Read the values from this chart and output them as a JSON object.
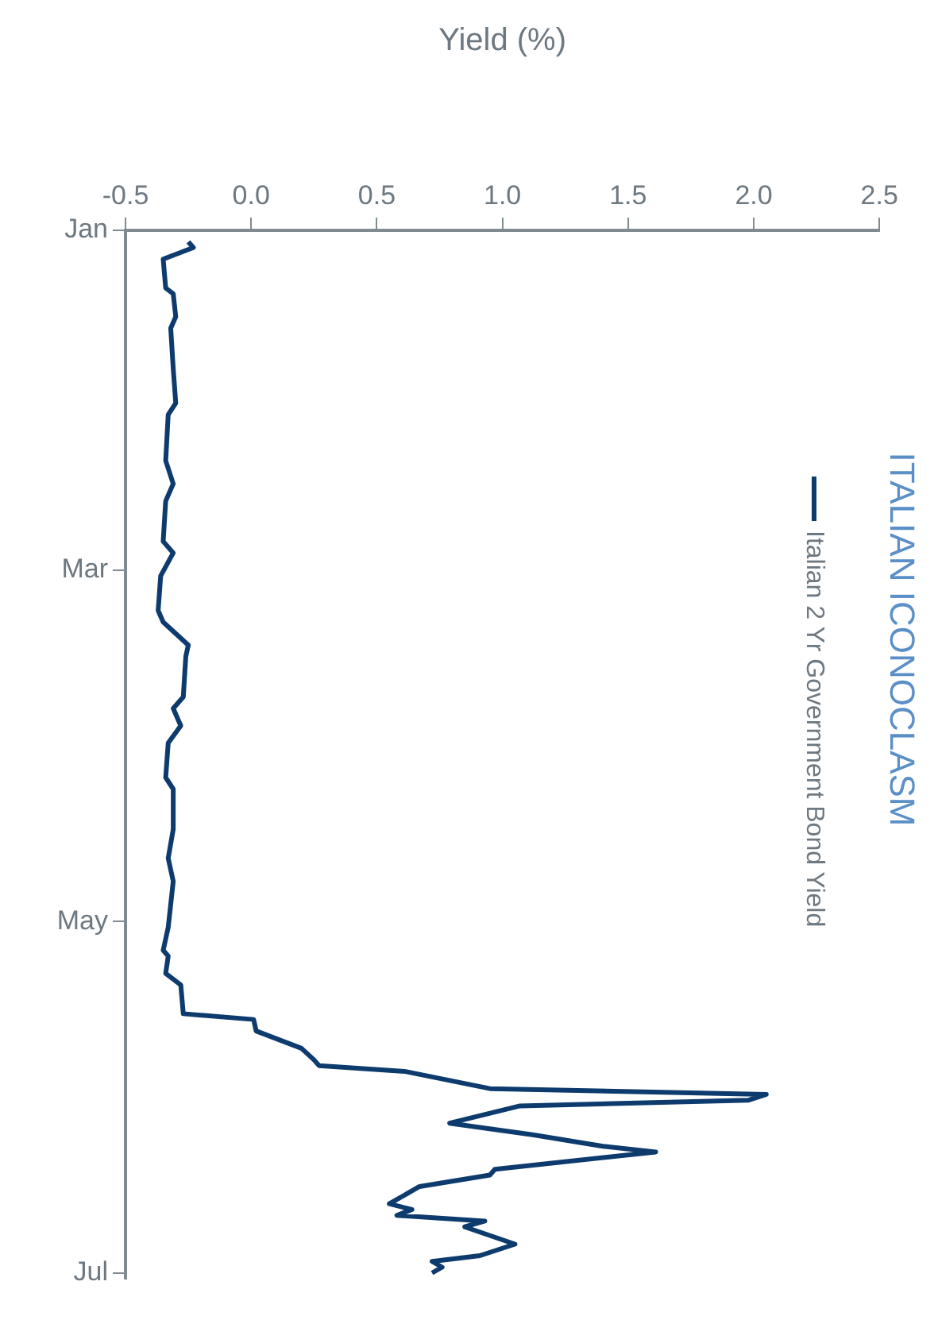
{
  "chart_data": {
    "type": "line",
    "orientation": "horizontal",
    "title": "ITALIAN ICONOCLASM",
    "xlabel": "Yield (%)",
    "x": [
      "--01-03",
      "--01-04",
      "--01-06",
      "--01-11",
      "--01-12",
      "--01-16",
      "--01-18",
      "--01-25",
      "--01-31",
      "--02-02",
      "--02-10",
      "--02-14",
      "--02-17",
      "--02-24",
      "--02-26",
      "--03-02",
      "--03-08",
      "--03-10",
      "--03-14",
      "--03-16",
      "--03-23",
      "--03-25",
      "--03-28",
      "--03-31",
      "--04-06",
      "--04-08",
      "--04-15",
      "--04-20",
      "--04-24",
      "--05-02",
      "--05-06",
      "--05-07",
      "--05-10",
      "--05-12",
      "--05-17",
      "--05-18",
      "--05-20",
      "--05-23",
      "--05-25",
      "--05-26",
      "--05-27",
      "--05-30",
      "--05-31",
      "--06-01",
      "--06-02",
      "--06-05",
      "--06-07",
      "--06-09",
      "--06-10",
      "--06-13",
      "--06-14",
      "--06-16",
      "--06-19",
      "--06-20",
      "--06-21",
      "--06-22",
      "--06-23",
      "--06-26",
      "--06-28",
      "--06-29",
      "--06-30",
      "--07-01"
    ],
    "series": [
      {
        "name": "Italian 2 Yr Government Bond Yield",
        "color": "#0d3b6e",
        "values": [
          -0.25,
          -0.23,
          -0.35,
          -0.34,
          -0.31,
          -0.3,
          -0.32,
          -0.31,
          -0.3,
          -0.33,
          -0.34,
          -0.31,
          -0.34,
          -0.35,
          -0.31,
          -0.36,
          -0.37,
          -0.35,
          -0.25,
          -0.26,
          -0.27,
          -0.31,
          -0.28,
          -0.33,
          -0.34,
          -0.31,
          -0.31,
          -0.33,
          -0.31,
          -0.33,
          -0.35,
          -0.33,
          -0.34,
          -0.28,
          -0.27,
          0.01,
          0.02,
          0.2,
          0.25,
          0.27,
          0.61,
          0.95,
          2.05,
          1.98,
          1.07,
          0.79,
          1.12,
          1.4,
          1.61,
          0.97,
          0.95,
          0.67,
          0.55,
          0.64,
          0.58,
          0.93,
          0.85,
          1.05,
          0.91,
          0.72,
          0.76,
          0.72
        ]
      }
    ],
    "ylim": [
      "--07-02",
      "--01-01"
    ],
    "yticks": [
      {
        "value": "--01-01",
        "label": "Jan"
      },
      {
        "value": "--03-01",
        "label": "Mar"
      },
      {
        "value": "--05-01",
        "label": "May"
      },
      {
        "value": "--07-01",
        "label": "Jul"
      }
    ],
    "xlim": [
      -0.5,
      2.5
    ],
    "xticks": [
      {
        "value": -0.5,
        "label": "-0.5"
      },
      {
        "value": 0,
        "label": "0.0"
      },
      {
        "value": 0.5,
        "label": "0.5"
      },
      {
        "value": 1,
        "label": "1.0"
      },
      {
        "value": 1.5,
        "label": "1.5"
      },
      {
        "value": 2,
        "label": "2.0"
      },
      {
        "value": 2.5,
        "label": "2.5"
      }
    ],
    "grid": false,
    "legend": "top",
    "marker": "none",
    "line_style": "solid"
  }
}
